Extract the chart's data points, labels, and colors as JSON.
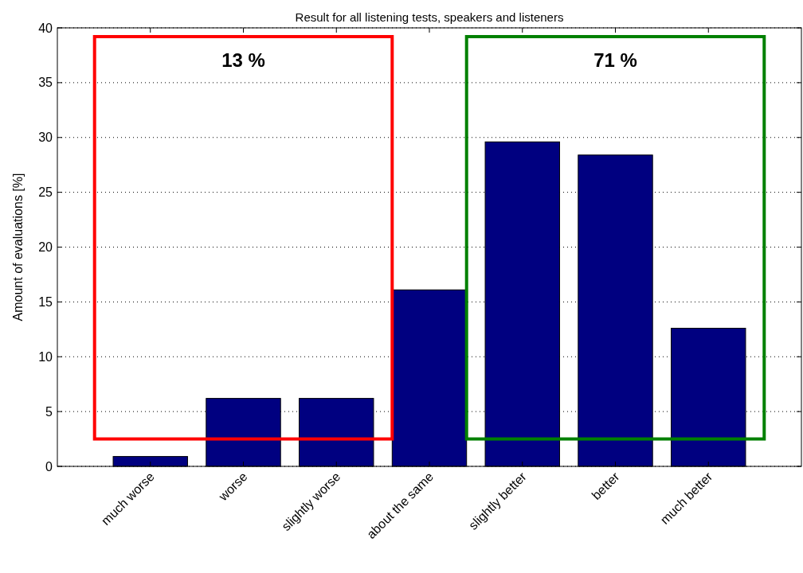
{
  "chart_data": {
    "type": "bar",
    "title": "Result for all listening tests, speakers and listeners",
    "ylabel": "Amount of evaluations [%]",
    "categories": [
      "much worse",
      "worse",
      "slightly worse",
      "about the same",
      "slightly better",
      "better",
      "much better"
    ],
    "values": [
      0.9,
      6.2,
      6.2,
      16.1,
      29.6,
      28.4,
      12.6
    ],
    "color": "#000080",
    "ylim": [
      0,
      40
    ],
    "yticks": [
      0,
      5,
      10,
      15,
      20,
      25,
      30,
      35,
      40
    ],
    "grid": "y",
    "annotations": [
      "13 %",
      "71 %"
    ]
  }
}
